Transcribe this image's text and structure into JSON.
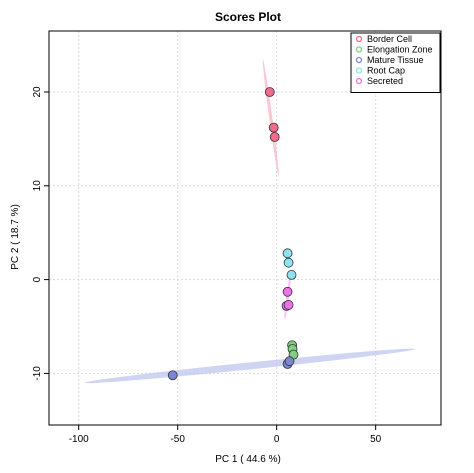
{
  "chart_data": {
    "type": "scatter",
    "title": "Scores Plot",
    "xlabel": "PC 1 ( 44.6 %)",
    "ylabel": "PC 2 ( 18.7 %)",
    "xlim": [
      -115,
      83
    ],
    "ylim": [
      -15.5,
      26.5
    ],
    "xticks": [
      -100,
      -50,
      0,
      50
    ],
    "yticks": [
      -10,
      0,
      10,
      20
    ],
    "grid": true,
    "legend_position": "top-right",
    "series": [
      {
        "name": "Border Cell",
        "color": "#F26B8A",
        "points": [
          [
            -3.5,
            20.0
          ],
          [
            -1.5,
            16.2
          ],
          [
            -1.0,
            15.2
          ]
        ]
      },
      {
        "name": "Elongation Zone",
        "color": "#7FD17F",
        "points": [
          [
            7.8,
            -7.0
          ],
          [
            8.0,
            -7.4
          ],
          [
            8.5,
            -8.0
          ]
        ]
      },
      {
        "name": "Mature Tissue",
        "color": "#7A86D1",
        "points": [
          [
            -52.5,
            -10.2
          ],
          [
            5.5,
            -9.0
          ],
          [
            6.5,
            -8.7
          ]
        ]
      },
      {
        "name": "Root Cap",
        "color": "#8FE3EE",
        "points": [
          [
            5.5,
            2.8
          ],
          [
            6.0,
            1.8
          ],
          [
            7.5,
            0.5
          ]
        ]
      },
      {
        "name": "Secreted",
        "color": "#F070E8",
        "points": [
          [
            5.5,
            -1.3
          ],
          [
            5.0,
            -2.8
          ],
          [
            6.0,
            -2.7
          ]
        ]
      }
    ],
    "ellipses": [
      {
        "series": "Border Cell",
        "color": "#F7B6C4",
        "from": [
          -7,
          23.5
        ],
        "to": [
          1,
          11.0
        ],
        "halfWidth": 1.6
      },
      {
        "series": "Mature Tissue",
        "color": "#BFC6EE",
        "from": [
          -97,
          -11.0
        ],
        "to": [
          70,
          -7.4
        ],
        "halfWidth": 3.5
      },
      {
        "series": "Secreted",
        "color": "#F7B0F0",
        "from": [
          4,
          -4.3
        ],
        "to": [
          7,
          0.5
        ],
        "halfWidth": 1.4
      }
    ]
  }
}
